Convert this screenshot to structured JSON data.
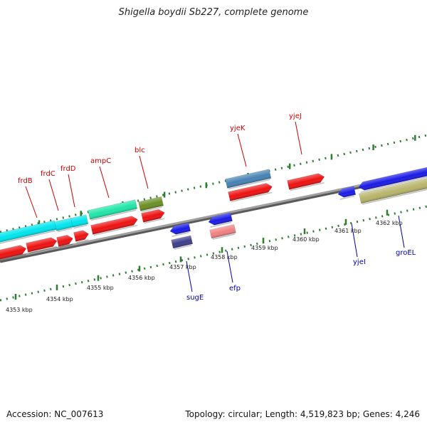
{
  "title": "Shigella boydii Sb227, complete genome",
  "footer": {
    "accession": "Accession: NC_007613",
    "summary": "Topology: circular; Length: 4,519,823 bp; Genes: 4,246"
  },
  "colors": {
    "backbone": "#8a8a8a",
    "tick": "#2e7d32",
    "upper_label": "#cc0000",
    "lower_label": "#0000aa",
    "axis_label": "#222222"
  },
  "axis_labels": [
    "4353 kbp",
    "4354 kbp",
    "4355 kbp",
    "4356 kbp",
    "4357 kbp",
    "4358 kbp",
    "4359 kbp",
    "4360 kbp",
    "4361 kbp",
    "4362 kbp"
  ],
  "upper_genes": [
    {
      "name": "frdB"
    },
    {
      "name": "frdC"
    },
    {
      "name": "frdD"
    },
    {
      "name": "ampC"
    },
    {
      "name": "blc"
    },
    {
      "name": "yjeK"
    },
    {
      "name": "yjeJ"
    }
  ],
  "lower_genes": [
    {
      "name": "sugE"
    },
    {
      "name": "efp"
    },
    {
      "name": "yjeI"
    },
    {
      "name": "groEL"
    }
  ]
}
